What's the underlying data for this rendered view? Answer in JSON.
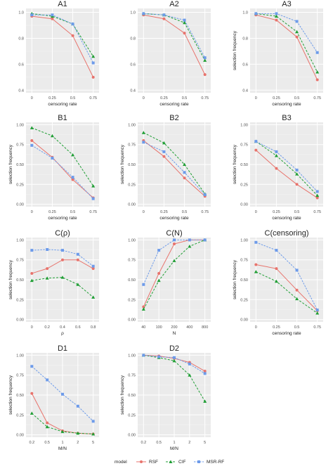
{
  "colors": {
    "RSF": "#e8736c",
    "CIF": "#1f9e34",
    "MSR-RF": "#6d9bea",
    "panel_bg": "#ebebeb",
    "grid": "#ffffff"
  },
  "legend": {
    "title": "model",
    "entries": [
      "RSF",
      "CIF",
      "MSR-RF"
    ],
    "placement": "bottom"
  },
  "chart_data": [
    {
      "title": "A1",
      "type": "line",
      "xlabel": "censoring rate",
      "ylabel": "",
      "categories": [
        "0",
        "0.25",
        "0.5",
        "0.75"
      ],
      "ylim": [
        0.38,
        1.03
      ],
      "yticks": [
        "0.4",
        "0.6",
        "0.8",
        "1.0"
      ],
      "yticks_v": [
        0.4,
        0.6,
        0.8,
        1.0
      ],
      "series": [
        {
          "name": "RSF",
          "values": [
            0.97,
            0.95,
            0.82,
            0.5
          ]
        },
        {
          "name": "CIF",
          "values": [
            0.99,
            0.97,
            0.91,
            0.66
          ]
        },
        {
          "name": "MSR-RF",
          "values": [
            0.98,
            0.98,
            0.91,
            0.61
          ]
        }
      ]
    },
    {
      "title": "A2",
      "type": "line",
      "xlabel": "censoring rate",
      "ylabel": "",
      "categories": [
        "0",
        "0.25",
        "0.5",
        "0.75"
      ],
      "ylim": [
        0.38,
        1.03
      ],
      "yticks": [
        "0.4",
        "0.6",
        "0.8",
        "1.0"
      ],
      "yticks_v": [
        0.4,
        0.6,
        0.8,
        1.0
      ],
      "series": [
        {
          "name": "RSF",
          "values": [
            0.98,
            0.95,
            0.84,
            0.52
          ]
        },
        {
          "name": "CIF",
          "values": [
            0.99,
            0.98,
            0.92,
            0.63
          ]
        },
        {
          "name": "MSR-RF",
          "values": [
            0.99,
            0.98,
            0.94,
            0.65
          ]
        }
      ]
    },
    {
      "title": "A3",
      "type": "line",
      "xlabel": "censoring rate",
      "ylabel": "selection frequency",
      "categories": [
        "0",
        "0.25",
        "0.5",
        "0.75"
      ],
      "ylim": [
        0.38,
        1.03
      ],
      "yticks": [
        "0.4",
        "0.6",
        "0.8",
        "1.0"
      ],
      "yticks_v": [
        0.4,
        0.6,
        0.8,
        1.0
      ],
      "series": [
        {
          "name": "RSF",
          "values": [
            0.98,
            0.94,
            0.81,
            0.48
          ]
        },
        {
          "name": "CIF",
          "values": [
            0.99,
            0.97,
            0.85,
            0.54
          ]
        },
        {
          "name": "MSR-RF",
          "values": [
            0.99,
            0.99,
            0.93,
            0.69
          ]
        }
      ]
    },
    {
      "title": "B1",
      "type": "line",
      "xlabel": "censoring rate",
      "ylabel": "selection frequency",
      "categories": [
        "0",
        "0.25",
        "0.5",
        "0.75"
      ],
      "ylim": [
        -0.03,
        1.03
      ],
      "yticks": [
        "0.00",
        "0.25",
        "0.50",
        "0.75",
        "1.00"
      ],
      "yticks_v": [
        0,
        0.25,
        0.5,
        0.75,
        1.0
      ],
      "series": [
        {
          "name": "RSF",
          "values": [
            0.8,
            0.59,
            0.31,
            0.08
          ]
        },
        {
          "name": "CIF",
          "values": [
            0.96,
            0.86,
            0.62,
            0.23
          ]
        },
        {
          "name": "MSR-RF",
          "values": [
            0.74,
            0.58,
            0.34,
            0.07
          ]
        }
      ]
    },
    {
      "title": "B2",
      "type": "line",
      "xlabel": "censoring rate",
      "ylabel": "selection frequency",
      "categories": [
        "0",
        "0.25",
        "0.5",
        "0.75"
      ],
      "ylim": [
        -0.03,
        1.03
      ],
      "yticks": [
        "0.00",
        "0.25",
        "0.50",
        "0.75",
        "1.00"
      ],
      "yticks_v": [
        0,
        0.25,
        0.5,
        0.75,
        1.0
      ],
      "series": [
        {
          "name": "RSF",
          "values": [
            0.8,
            0.6,
            0.33,
            0.1
          ]
        },
        {
          "name": "CIF",
          "values": [
            0.9,
            0.77,
            0.5,
            0.13
          ]
        },
        {
          "name": "MSR-RF",
          "values": [
            0.78,
            0.66,
            0.4,
            0.12
          ]
        }
      ]
    },
    {
      "title": "B3",
      "type": "line",
      "xlabel": "censoring rate",
      "ylabel": "selection frequency",
      "categories": [
        "0",
        "0.25",
        "0.5",
        "0.75"
      ],
      "ylim": [
        -0.03,
        1.03
      ],
      "yticks": [
        "0.00",
        "0.25",
        "0.50",
        "0.75",
        "1.00"
      ],
      "yticks_v": [
        0,
        0.25,
        0.5,
        0.75,
        1.0
      ],
      "series": [
        {
          "name": "RSF",
          "values": [
            0.68,
            0.45,
            0.25,
            0.08
          ]
        },
        {
          "name": "CIF",
          "values": [
            0.79,
            0.61,
            0.38,
            0.11
          ]
        },
        {
          "name": "MSR-RF",
          "values": [
            0.79,
            0.66,
            0.43,
            0.16
          ]
        }
      ]
    },
    {
      "title": "C(ρ)",
      "type": "line",
      "xlabel": "ρ",
      "ylabel": "selection frequency",
      "categories": [
        "0",
        "0.2",
        "0.4",
        "0.6",
        "0.8"
      ],
      "ylim": [
        -0.03,
        1.03
      ],
      "yticks": [
        "0.00",
        "0.25",
        "0.50",
        "0.75",
        "1.00"
      ],
      "yticks_v": [
        0,
        0.25,
        0.5,
        0.75,
        1.0
      ],
      "series": [
        {
          "name": "RSF",
          "values": [
            0.58,
            0.64,
            0.75,
            0.75,
            0.64
          ]
        },
        {
          "name": "CIF",
          "values": [
            0.49,
            0.52,
            0.53,
            0.44,
            0.28
          ]
        },
        {
          "name": "MSR-RF",
          "values": [
            0.87,
            0.88,
            0.87,
            0.82,
            0.67
          ]
        }
      ]
    },
    {
      "title": "C(N)",
      "type": "line",
      "xlabel": "N",
      "ylabel": "",
      "categories": [
        "40",
        "100",
        "200",
        "400",
        "800"
      ],
      "ylim": [
        -0.03,
        1.03
      ],
      "yticks": [
        "0.00",
        "0.25",
        "0.50",
        "0.75",
        "1.00"
      ],
      "yticks_v": [
        0,
        0.25,
        0.5,
        0.75,
        1.0
      ],
      "series": [
        {
          "name": "RSF",
          "values": [
            0.16,
            0.58,
            0.95,
            1.0,
            1.0
          ]
        },
        {
          "name": "CIF",
          "values": [
            0.13,
            0.49,
            0.74,
            0.92,
            1.0
          ]
        },
        {
          "name": "MSR-RF",
          "values": [
            0.44,
            0.87,
            1.0,
            1.0,
            1.0
          ]
        }
      ]
    },
    {
      "title": "C(censoring)",
      "type": "line",
      "xlabel": "censoring rate",
      "ylabel": "selection frequency",
      "categories": [
        "0",
        "0.25",
        "0.5",
        "0.75"
      ],
      "ylim": [
        -0.03,
        1.03
      ],
      "yticks": [
        "0.00",
        "0.25",
        "0.50",
        "0.75",
        "1.00"
      ],
      "yticks_v": [
        0,
        0.25,
        0.5,
        0.75,
        1.0
      ],
      "series": [
        {
          "name": "RSF",
          "values": [
            0.69,
            0.64,
            0.37,
            0.11
          ]
        },
        {
          "name": "CIF",
          "values": [
            0.6,
            0.48,
            0.26,
            0.08
          ]
        },
        {
          "name": "MSR-RF",
          "values": [
            0.97,
            0.87,
            0.62,
            0.12
          ]
        }
      ]
    },
    {
      "title": "D1",
      "type": "line",
      "xlabel": "M/N",
      "ylabel": "selection frequency",
      "categories": [
        "0.2",
        "0.5",
        "1",
        "2",
        "5"
      ],
      "ylim": [
        -0.03,
        1.03
      ],
      "yticks": [
        "0.00",
        "0.25",
        "0.50",
        "0.75",
        "1.00"
      ],
      "yticks_v": [
        0,
        0.25,
        0.5,
        0.75,
        1.0
      ],
      "series": [
        {
          "name": "RSF",
          "values": [
            0.52,
            0.15,
            0.05,
            0.02,
            0.01
          ]
        },
        {
          "name": "CIF",
          "values": [
            0.27,
            0.1,
            0.04,
            0.02,
            0.01
          ]
        },
        {
          "name": "MSR-RF",
          "values": [
            0.86,
            0.69,
            0.51,
            0.36,
            0.17
          ]
        }
      ]
    },
    {
      "title": "D2",
      "type": "line",
      "xlabel": "M/N",
      "ylabel": "selection frequency",
      "categories": [
        "0.2",
        "0.5",
        "1",
        "2",
        "5"
      ],
      "ylim": [
        -0.03,
        1.03
      ],
      "yticks": [
        "0.00",
        "0.25",
        "0.50",
        "0.75",
        "1.00"
      ],
      "yticks_v": [
        0,
        0.25,
        0.5,
        0.75,
        1.0
      ],
      "series": [
        {
          "name": "RSF",
          "values": [
            1.0,
            0.99,
            0.96,
            0.91,
            0.8
          ]
        },
        {
          "name": "CIF",
          "values": [
            1.0,
            0.97,
            0.93,
            0.75,
            0.42
          ]
        },
        {
          "name": "MSR-RF",
          "values": [
            1.0,
            0.98,
            0.97,
            0.89,
            0.77
          ]
        }
      ]
    }
  ]
}
